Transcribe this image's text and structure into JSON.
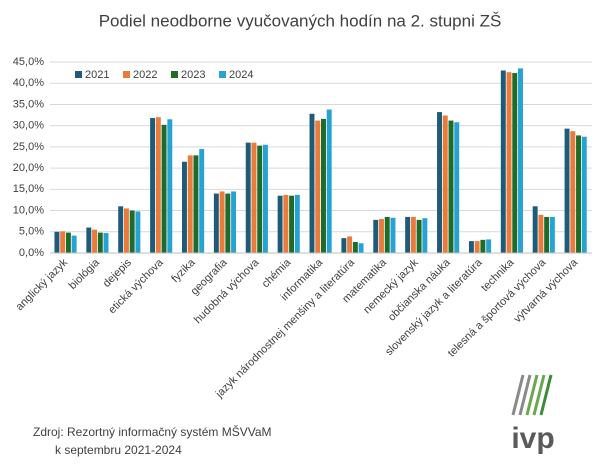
{
  "chart_data": {
    "type": "bar",
    "title": "Podiel neodborne vyučovaných hodín na 2. stupni ZŠ",
    "categories": [
      "anglický jazyk",
      "biológia",
      "dejepis",
      "etická výchova",
      "fyzika",
      "geografia",
      "hudobná výchova",
      "chémia",
      "informatika",
      "jazyk národnostnej menšiny a literatúra",
      "matematika",
      "nemecký jazyk",
      "občianska náuka",
      "slovenský jazyk a literatúra",
      "technika",
      "telesná a športová výchova",
      "výtvarná výchova"
    ],
    "series": [
      {
        "name": "2021",
        "color": "#1d5b79",
        "values": [
          5.0,
          6.0,
          11.0,
          31.8,
          21.5,
          14.0,
          26.0,
          13.5,
          32.8,
          3.5,
          7.8,
          8.5,
          33.2,
          2.8,
          43.0,
          11.0,
          29.3
        ]
      },
      {
        "name": "2022",
        "color": "#e97b3c",
        "values": [
          5.1,
          5.5,
          10.5,
          32.0,
          23.0,
          14.5,
          26.0,
          13.7,
          31.2,
          3.9,
          8.0,
          8.5,
          32.4,
          2.8,
          42.6,
          9.0,
          28.7
        ]
      },
      {
        "name": "2023",
        "color": "#1f6b2a",
        "values": [
          4.8,
          4.8,
          10.0,
          30.2,
          23.0,
          14.0,
          25.3,
          13.5,
          31.6,
          2.6,
          8.5,
          7.8,
          31.2,
          3.1,
          42.4,
          8.5,
          27.7
        ]
      },
      {
        "name": "2024",
        "color": "#27a3d3",
        "values": [
          4.1,
          4.7,
          9.8,
          31.5,
          24.5,
          14.5,
          25.5,
          13.7,
          33.8,
          2.3,
          8.3,
          8.2,
          30.8,
          3.2,
          43.5,
          8.5,
          27.4
        ]
      }
    ],
    "ylim": [
      0,
      45
    ],
    "yticks": [
      {
        "value": 0,
        "label": "0,0%"
      },
      {
        "value": 5,
        "label": "5,0%"
      },
      {
        "value": 10,
        "label": "10,0%"
      },
      {
        "value": 15,
        "label": "15,0%"
      },
      {
        "value": 20,
        "label": "20,0%"
      },
      {
        "value": 25,
        "label": "25,0%"
      },
      {
        "value": 30,
        "label": "30,0%"
      },
      {
        "value": 35,
        "label": "35,0%"
      },
      {
        "value": 40,
        "label": "40,0%"
      },
      {
        "value": 45,
        "label": "45,0%"
      }
    ],
    "grid": true,
    "legend": "top-left",
    "source": [
      "Zdroj: Rezortný informačný systém MŠVVaM",
      "k septembru 2021-2024"
    ],
    "logo": "ivp"
  }
}
